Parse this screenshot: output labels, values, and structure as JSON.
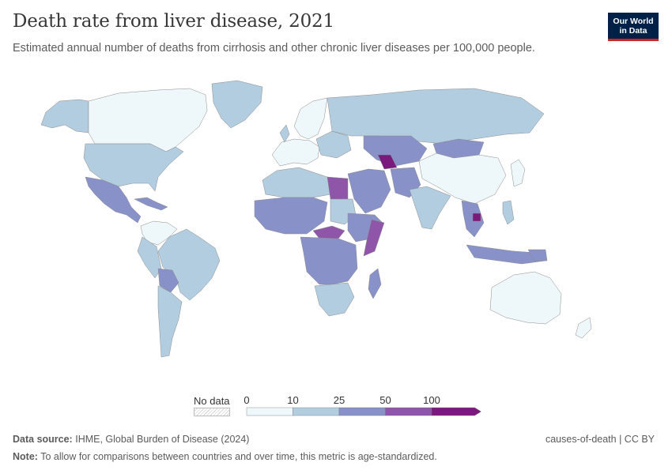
{
  "header": {
    "title": "Death rate from liver disease, 2021",
    "subtitle": "Estimated annual number of deaths from cirrhosis and other chronic liver diseases per 100,000 people.",
    "logo_line1": "Our World",
    "logo_line2": "in Data"
  },
  "legend": {
    "no_data_label": "No data",
    "bins": [
      {
        "from": 0,
        "to": 10,
        "color": "#eef7f9"
      },
      {
        "from": 10,
        "to": 25,
        "color": "#b3cde0"
      },
      {
        "from": 25,
        "to": 50,
        "color": "#8891c8"
      },
      {
        "from": 50,
        "to": 100,
        "color": "#8e55a8"
      },
      {
        "from": 100,
        "to": null,
        "color": "#7a1a7c"
      }
    ],
    "tick_labels": [
      "0",
      "10",
      "25",
      "50",
      "100"
    ],
    "no_data_color": "#e3e3e3"
  },
  "footer": {
    "source_label": "Data source:",
    "source_text": "IHME, Global Burden of Disease (2024)",
    "note_label": "Note:",
    "note_text": "To allow for comparisons between countries and over time, this metric is age-standardized.",
    "right_text": "causes-of-death | CC BY"
  }
}
